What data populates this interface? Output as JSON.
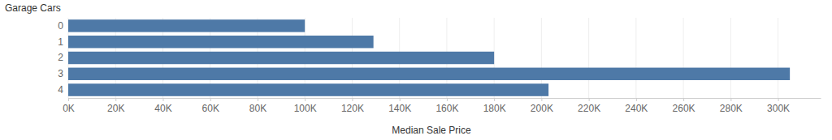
{
  "chart_data": {
    "type": "bar",
    "orientation": "horizontal",
    "x_label": "Median Sale Price",
    "y_label": "Garage Cars",
    "categories": [
      "0",
      "1",
      "2",
      "3",
      "4"
    ],
    "values": [
      100000,
      129000,
      180000,
      305000,
      203000
    ],
    "color": "#4e79a7",
    "xlim": [
      0,
      318000
    ],
    "xticks": [
      {
        "value": 0,
        "label": "0K"
      },
      {
        "value": 20000,
        "label": "20K"
      },
      {
        "value": 40000,
        "label": "40K"
      },
      {
        "value": 60000,
        "label": "60K"
      },
      {
        "value": 80000,
        "label": "80K"
      },
      {
        "value": 100000,
        "label": "100K"
      },
      {
        "value": 120000,
        "label": "120K"
      },
      {
        "value": 140000,
        "label": "140K"
      },
      {
        "value": 160000,
        "label": "160K"
      },
      {
        "value": 180000,
        "label": "180K"
      },
      {
        "value": 200000,
        "label": "200K"
      },
      {
        "value": 220000,
        "label": "220K"
      },
      {
        "value": 240000,
        "label": "240K"
      },
      {
        "value": 260000,
        "label": "260K"
      },
      {
        "value": 280000,
        "label": "280K"
      },
      {
        "value": 300000,
        "label": "300K"
      }
    ],
    "grid": true
  }
}
